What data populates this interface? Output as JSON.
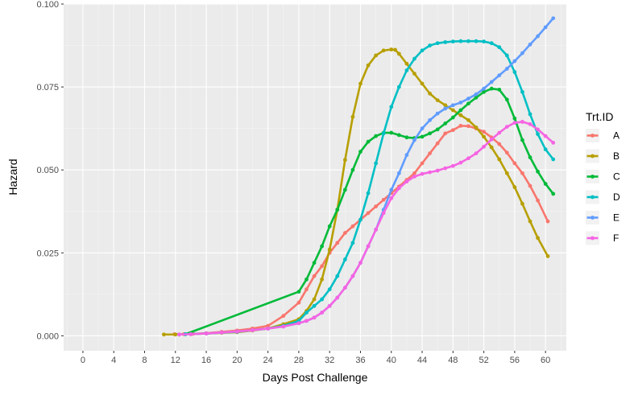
{
  "chart_data": {
    "type": "line",
    "xlabel": "Days Post Challenge",
    "ylabel": "Hazard",
    "xlim": [
      -2.5,
      62.7
    ],
    "ylim": [
      -0.0045,
      0.1
    ],
    "x_ticks": [
      0,
      4,
      8,
      12,
      16,
      20,
      24,
      28,
      32,
      36,
      40,
      44,
      48,
      52,
      56,
      60
    ],
    "y_ticks": [
      0.0,
      0.025,
      0.05,
      0.075,
      0.1
    ],
    "y_tick_labels": [
      "0.000",
      "0.025",
      "0.050",
      "0.075",
      "0.100"
    ],
    "grid": true,
    "legend": {
      "title": "Trt.ID",
      "placement": "right"
    },
    "series": [
      {
        "name": "A",
        "color": "#F8766D",
        "x": [
          11.9,
          13.1,
          14.3,
          16,
          18,
          20,
          22,
          24,
          26,
          28,
          29,
          30,
          31,
          32,
          33,
          34,
          35,
          36,
          37,
          38,
          39,
          40,
          41,
          42,
          43,
          44,
          45,
          46,
          47,
          48,
          49,
          50,
          51,
          52,
          53,
          54,
          55,
          56,
          57,
          58,
          59,
          60.3
        ],
        "y": [
          0.0005,
          0.0005,
          0.0006,
          0.0008,
          0.0012,
          0.0016,
          0.0022,
          0.003,
          0.006,
          0.01,
          0.014,
          0.018,
          0.021,
          0.025,
          0.028,
          0.031,
          0.033,
          0.035,
          0.037,
          0.039,
          0.041,
          0.043,
          0.045,
          0.047,
          0.049,
          0.052,
          0.055,
          0.058,
          0.061,
          0.062,
          0.0633,
          0.0632,
          0.0625,
          0.0615,
          0.0598,
          0.0578,
          0.0552,
          0.052,
          0.049,
          0.0452,
          0.0408,
          0.0345
        ]
      },
      {
        "name": "B",
        "color": "#B79F00",
        "x": [
          10.5,
          12,
          14,
          16,
          18,
          20,
          22,
          24,
          26,
          28,
          29,
          30,
          31,
          32,
          33,
          34,
          35,
          36,
          37,
          38,
          39,
          40,
          40.5,
          41,
          42,
          43,
          44,
          45,
          46,
          47,
          48,
          49,
          50,
          51,
          52,
          53,
          54,
          55,
          56,
          57,
          58,
          59,
          60.3
        ],
        "y": [
          0.0004,
          0.0004,
          0.0005,
          0.0007,
          0.0009,
          0.0011,
          0.0016,
          0.0022,
          0.0035,
          0.005,
          0.0075,
          0.011,
          0.017,
          0.026,
          0.038,
          0.053,
          0.066,
          0.076,
          0.0815,
          0.0845,
          0.086,
          0.0863,
          0.0862,
          0.085,
          0.082,
          0.079,
          0.076,
          0.073,
          0.071,
          0.0695,
          0.068,
          0.0665,
          0.065,
          0.0628,
          0.06,
          0.0568,
          0.0532,
          0.049,
          0.0448,
          0.0398,
          0.0345,
          0.0295,
          0.024
        ]
      },
      {
        "name": "C",
        "color": "#00BA38",
        "x": [
          13.3,
          28,
          29,
          30,
          31,
          32,
          33,
          34,
          35,
          36,
          37,
          38,
          39,
          40,
          41,
          42,
          43,
          44,
          45,
          46,
          47,
          48,
          49,
          50,
          51,
          52,
          53,
          54,
          55,
          56,
          57,
          58,
          59,
          60,
          61
        ],
        "y": [
          0.0005,
          0.0133,
          0.017,
          0.022,
          0.027,
          0.033,
          0.038,
          0.044,
          0.05,
          0.0555,
          0.0585,
          0.0602,
          0.0612,
          0.0612,
          0.0605,
          0.0598,
          0.0596,
          0.06,
          0.061,
          0.0622,
          0.064,
          0.0658,
          0.068,
          0.07,
          0.0718,
          0.0735,
          0.0745,
          0.0742,
          0.0712,
          0.0655,
          0.059,
          0.0538,
          0.0495,
          0.0458,
          0.0428
        ]
      },
      {
        "name": "D",
        "color": "#00BFC4",
        "x": [
          13.3,
          16,
          20,
          24,
          26,
          28,
          29,
          30,
          31,
          32,
          33,
          34,
          35,
          36,
          37,
          38,
          39,
          40,
          41,
          42,
          43,
          44,
          45,
          46,
          47,
          48,
          49,
          50,
          51,
          52,
          53,
          54,
          55,
          56,
          57,
          58,
          59,
          60,
          61
        ],
        "y": [
          0.0005,
          0.0007,
          0.0012,
          0.0022,
          0.003,
          0.0045,
          0.007,
          0.009,
          0.011,
          0.014,
          0.018,
          0.023,
          0.028,
          0.035,
          0.043,
          0.052,
          0.061,
          0.069,
          0.075,
          0.08,
          0.0835,
          0.086,
          0.0875,
          0.0882,
          0.0885,
          0.0887,
          0.0888,
          0.0888,
          0.0888,
          0.0887,
          0.0882,
          0.087,
          0.0845,
          0.0795,
          0.0735,
          0.0668,
          0.0608,
          0.0562,
          0.0532
        ]
      },
      {
        "name": "E",
        "color": "#619CFF",
        "x": [
          12.5,
          14,
          16,
          18,
          20,
          22,
          24,
          26,
          28,
          29,
          30,
          31,
          32,
          33,
          34,
          35,
          36,
          37,
          38,
          39,
          40,
          41,
          42,
          43,
          44,
          45,
          46,
          47,
          48,
          49,
          50,
          51,
          52,
          53,
          54,
          55,
          56,
          57,
          58,
          59,
          60,
          61
        ],
        "y": [
          0.0004,
          0.0005,
          0.0007,
          0.001,
          0.0013,
          0.0017,
          0.0022,
          0.0028,
          0.0038,
          0.0045,
          0.0055,
          0.007,
          0.009,
          0.0115,
          0.0145,
          0.018,
          0.022,
          0.027,
          0.032,
          0.038,
          0.044,
          0.049,
          0.0545,
          0.059,
          0.0625,
          0.065,
          0.067,
          0.0685,
          0.0695,
          0.0703,
          0.0715,
          0.0728,
          0.0745,
          0.0765,
          0.0785,
          0.0805,
          0.0828,
          0.0852,
          0.0878,
          0.0903,
          0.093,
          0.0957
        ]
      },
      {
        "name": "F",
        "color": "#F564E3",
        "x": [
          12.5,
          14,
          16,
          18,
          20,
          22,
          24,
          26,
          28,
          29,
          30,
          31,
          32,
          33,
          34,
          35,
          36,
          37,
          38,
          39,
          40,
          41,
          42,
          43,
          44,
          45,
          46,
          47,
          48,
          49,
          50,
          51,
          52,
          53,
          54,
          55,
          56,
          57,
          58,
          59,
          60,
          61
        ],
        "y": [
          0.0004,
          0.0005,
          0.0007,
          0.001,
          0.0013,
          0.0017,
          0.0022,
          0.0028,
          0.0038,
          0.0045,
          0.0055,
          0.007,
          0.009,
          0.0115,
          0.0145,
          0.018,
          0.022,
          0.027,
          0.032,
          0.037,
          0.0415,
          0.0445,
          0.0465,
          0.048,
          0.0488,
          0.0493,
          0.0498,
          0.0505,
          0.0512,
          0.0522,
          0.0535,
          0.055,
          0.057,
          0.0592,
          0.0612,
          0.063,
          0.0642,
          0.0645,
          0.0638,
          0.0622,
          0.0602,
          0.0582
        ]
      }
    ]
  }
}
